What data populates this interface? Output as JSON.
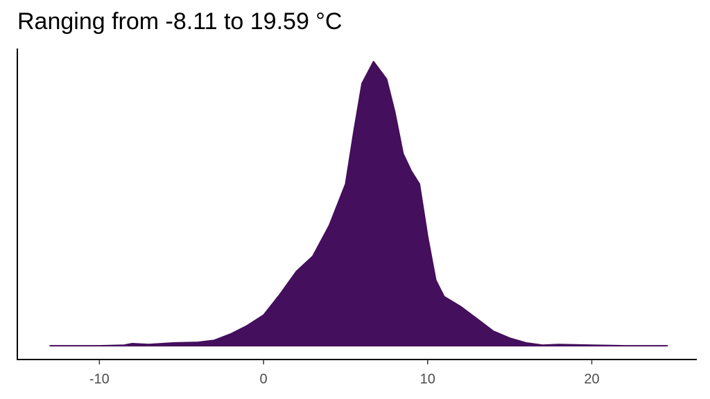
{
  "chart_data": {
    "type": "density",
    "title": "Ranging from -8.11 to 19.59 °C",
    "x": [
      -13,
      -10,
      -8.5,
      -8,
      -7,
      -5.5,
      -4,
      -3,
      -2,
      -1,
      0,
      1,
      2,
      3,
      4,
      5,
      5.5,
      6,
      6.7,
      7.5,
      8,
      8.5,
      9,
      9.5,
      10,
      10.5,
      11,
      12,
      13,
      14,
      15,
      16,
      17,
      18,
      20,
      22,
      24.6
    ],
    "values": [
      0,
      0,
      0.0003,
      0.001,
      0.0006,
      0.0013,
      0.0016,
      0.0025,
      0.0054,
      0.0092,
      0.014,
      0.0235,
      0.034,
      0.041,
      0.055,
      0.074,
      0.098,
      0.12,
      0.13,
      0.122,
      0.107,
      0.088,
      0.08,
      0.074,
      0.05,
      0.03,
      0.0225,
      0.018,
      0.0124,
      0.0067,
      0.0035,
      0.0013,
      0.0003,
      0.0006,
      0.0003,
      0,
      0
    ],
    "color": "#440f5c",
    "xlim": [
      -15,
      26.4
    ],
    "ylim": [
      -0.0063,
      0.136
    ],
    "xticks": [
      -10,
      0,
      10,
      20
    ]
  }
}
